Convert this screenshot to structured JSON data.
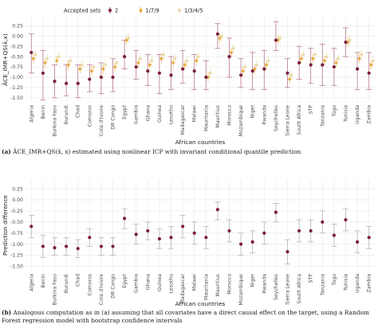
{
  "countries": [
    "Algeria",
    "Benin",
    "Burkina Faso",
    "Burundi",
    "Chad",
    "Comoros",
    "Cote d'Ivoire",
    "DR Congo",
    "Egypt",
    "Gambia",
    "Ghana",
    "Guinea",
    "Lesotho",
    "Madagascar",
    "Malawi",
    "Mauritania",
    "Mauritius",
    "Morocco",
    "Mozambique",
    "Niger",
    "Rwanda",
    "Seychelles",
    "Sierra Leone",
    "South Africa",
    "STP",
    "Tanzania",
    "Togo",
    "Tunisia",
    "Uganda",
    "Zambia"
  ],
  "colors": {
    "set_2": "#7b1f3c",
    "set_179": "#e8a93b",
    "set_1345": "#ecd9a6",
    "err_a": "#b97a89",
    "err_b": "#b3b3b3",
    "grid": "#ebebeb",
    "axis_text": "#4d4d4d"
  },
  "chart_data": [
    {
      "type": "scatter",
      "id": "a",
      "ylabel": "ÂCE_IMR+QS(x̄,x)",
      "xlabel": "African countries",
      "ylim": [
        -1.6,
        0.45
      ],
      "yticks": [
        0.25,
        0,
        -0.25,
        -0.5,
        -0.75,
        -1,
        -1.25,
        -1.5
      ],
      "ytick_labels": [
        "0.25",
        "0.00",
        "-0.25",
        "-0.50",
        "-0.75",
        "-1.00",
        "-1.25",
        "-1.50"
      ],
      "grid": true,
      "legend": {
        "title": "Accepted sets",
        "position": "top",
        "entries": [
          {
            "name": "2",
            "color_key": "set_2"
          },
          {
            "name": "1/7/9",
            "color_key": "set_179"
          },
          {
            "name": "1/3/4/5",
            "color_key": "set_1345"
          }
        ]
      },
      "series": [
        {
          "name": "2",
          "values": [
            -0.4,
            -0.9,
            -1.1,
            -1.15,
            -1.15,
            -1.05,
            -1.0,
            -1.0,
            -0.5,
            -0.75,
            -0.85,
            -0.9,
            -0.95,
            -0.8,
            -0.85,
            -1.0,
            0.05,
            -0.5,
            -0.95,
            -0.85,
            -0.8,
            -0.1,
            -0.9,
            -0.65,
            -0.7,
            -0.7,
            -0.75,
            -0.15,
            -0.8,
            -0.9
          ],
          "lower": [
            -0.9,
            -1.55,
            -1.5,
            -1.45,
            -1.5,
            -1.35,
            -1.4,
            -1.35,
            -0.8,
            -1.05,
            -1.2,
            -1.4,
            -1.3,
            -1.15,
            -1.3,
            -1.3,
            -0.3,
            -1.0,
            -1.25,
            -1.3,
            -1.3,
            -0.35,
            -1.25,
            -1.05,
            -1.15,
            -1.2,
            -1.2,
            -0.5,
            -1.3,
            -1.3
          ],
          "upper": [
            0.05,
            -0.35,
            -0.7,
            -0.7,
            -0.7,
            -0.7,
            -0.65,
            -0.55,
            -0.1,
            -0.35,
            -0.45,
            -0.45,
            -0.5,
            -0.35,
            -0.45,
            -0.6,
            0.3,
            -0.05,
            -0.55,
            -0.4,
            -0.35,
            0.35,
            -0.55,
            -0.25,
            -0.3,
            -0.2,
            -0.3,
            0.2,
            -0.4,
            -0.4
          ]
        },
        {
          "name": "1/7/9",
          "values": [
            -0.55,
            -0.65,
            -0.6,
            -0.7,
            -0.8,
            -0.85,
            -0.8,
            -0.75,
            -0.1,
            -0.65,
            -0.7,
            -0.55,
            -0.65,
            -0.7,
            -0.6,
            -1.0,
            -0.05,
            -0.4,
            -0.85,
            -0.8,
            -0.7,
            -0.1,
            -1.05,
            -0.55,
            -0.55,
            -0.6,
            -0.65,
            -0.15,
            -0.55,
            -0.7
          ]
        },
        {
          "name": "1/3/4/5",
          "values": [
            -0.45,
            -0.55,
            -0.5,
            -0.6,
            -0.7,
            -0.75,
            -0.7,
            -0.65,
            -0.05,
            -0.55,
            -0.6,
            -0.45,
            -0.55,
            -0.6,
            -0.5,
            -0.9,
            0.0,
            -0.3,
            -0.75,
            -0.7,
            -0.6,
            -0.05,
            -0.95,
            -0.45,
            -0.45,
            -0.5,
            -0.55,
            -0.1,
            -0.45,
            -0.6
          ]
        }
      ]
    },
    {
      "type": "scatter",
      "id": "b",
      "ylabel": "Prediction difference",
      "xlabel": "African countries",
      "ylim": [
        -1.6,
        0.45
      ],
      "yticks": [
        0.25,
        0,
        -0.25,
        -0.5,
        -0.75,
        -1,
        -1.25,
        -1.5
      ],
      "ytick_labels": [
        "0.25",
        "0.00",
        "-0.25",
        "-0.50",
        "-0.75",
        "-1.00",
        "-1.25",
        "-1.50"
      ],
      "grid": true,
      "series": [
        {
          "name": "",
          "values": [
            -0.6,
            -1.05,
            -1.08,
            -1.05,
            -1.1,
            -0.85,
            -1.05,
            -1.05,
            -0.42,
            -0.78,
            -0.7,
            -0.88,
            -0.85,
            -0.6,
            -0.75,
            -0.85,
            -0.22,
            -0.7,
            -1.0,
            -0.95,
            -0.75,
            -0.28,
            -1.17,
            -0.7,
            -0.7,
            -0.5,
            -0.8,
            -0.45,
            -0.95,
            -0.85
          ],
          "lower": [
            -0.85,
            -1.3,
            -1.25,
            -1.25,
            -1.3,
            -1.05,
            -1.25,
            -1.25,
            -0.65,
            -1.0,
            -0.9,
            -1.1,
            -1.1,
            -0.85,
            -1.0,
            -1.1,
            -0.45,
            -0.95,
            -1.25,
            -1.2,
            -1.0,
            -0.5,
            -1.45,
            -0.95,
            -0.95,
            -0.75,
            -1.05,
            -0.7,
            -1.2,
            -1.1
          ],
          "upper": [
            -0.35,
            -0.8,
            -0.85,
            -0.85,
            -0.9,
            -0.65,
            -0.85,
            -0.85,
            -0.2,
            -0.55,
            -0.5,
            -0.65,
            -0.6,
            -0.35,
            -0.5,
            -0.6,
            -0.05,
            -0.45,
            -0.75,
            -0.7,
            -0.5,
            -0.08,
            -0.9,
            -0.45,
            -0.45,
            -0.25,
            -0.55,
            -0.2,
            -0.7,
            -0.6
          ]
        }
      ]
    }
  ],
  "captions": {
    "a_label": "(a)",
    "a_text": "ÂCE_IMR+QS(x̄, x) estimated using nonlinear ICP with invariant conditional quantile prediction",
    "b_label": "(b)",
    "b_text": "Analogous computation as in (a) assuming that all covariates have a direct causal effect on the target, using a Random Forest regression model with bootstrap confidence intervals"
  }
}
